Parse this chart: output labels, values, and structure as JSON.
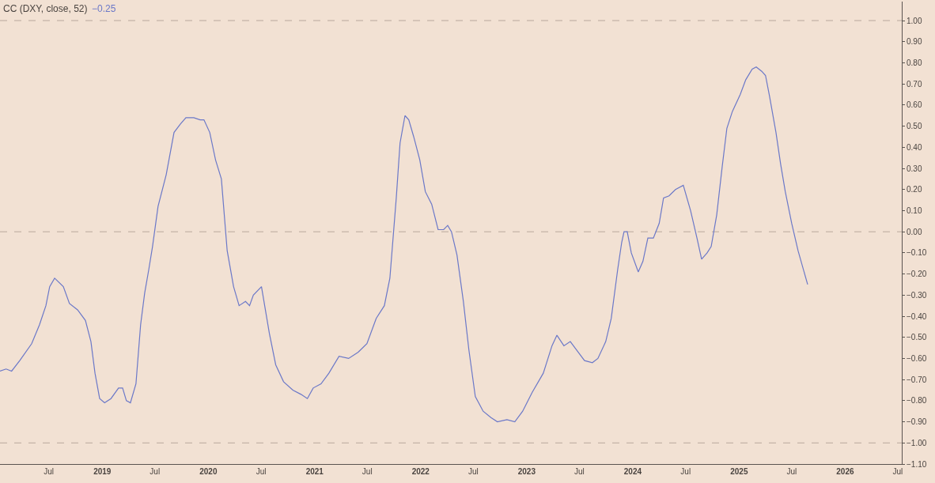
{
  "chart_data": {
    "type": "line",
    "title": "CC (DXY, close, 52)",
    "annotations": [
      "−0.25"
    ],
    "x": [
      "2018-01-14",
      "2018-02-04",
      "2018-02-23",
      "2018-03-23",
      "2018-05-03",
      "2018-05-30",
      "2018-06-21",
      "2018-07-04",
      "2018-07-21",
      "2018-08-20",
      "2018-09-10",
      "2018-10-08",
      "2018-11-04",
      "2018-11-23",
      "2018-12-07",
      "2018-12-23",
      "2019-01-09",
      "2019-01-31",
      "2019-02-26",
      "2019-03-12",
      "2019-03-25",
      "2019-04-08",
      "2019-04-27",
      "2019-05-13",
      "2019-05-27",
      "2019-06-10",
      "2019-06-23",
      "2019-07-12",
      "2019-08-09",
      "2019-09-05",
      "2019-09-27",
      "2019-10-16",
      "2019-11-12",
      "2019-12-04",
      "2019-12-17",
      "2020-01-06",
      "2020-01-26",
      "2020-02-15",
      "2020-03-06",
      "2020-03-28",
      "2020-04-16",
      "2020-05-08",
      "2020-05-22",
      "2020-06-04",
      "2020-07-02",
      "2020-07-29",
      "2020-08-20",
      "2020-09-16",
      "2020-10-18",
      "2020-11-15",
      "2020-12-07",
      "2020-12-27",
      "2021-01-23",
      "2021-02-19",
      "2021-03-26",
      "2021-04-28",
      "2021-05-31",
      "2021-06-30",
      "2021-08-01",
      "2021-08-29",
      "2021-09-17",
      "2021-10-09",
      "2021-10-22",
      "2021-11-08",
      "2021-11-21",
      "2021-12-08",
      "2021-12-29",
      "2022-01-17",
      "2022-02-08",
      "2022-03-02",
      "2022-03-21",
      "2022-04-04",
      "2022-04-17",
      "2022-05-06",
      "2022-05-28",
      "2022-06-16",
      "2022-07-08",
      "2022-08-04",
      "2022-08-31",
      "2022-09-22",
      "2022-10-25",
      "2022-11-21",
      "2022-12-18",
      "2023-01-20",
      "2023-02-27",
      "2023-03-29",
      "2023-04-15",
      "2023-05-09",
      "2023-05-31",
      "2023-06-27",
      "2023-07-19",
      "2023-08-15",
      "2023-09-03",
      "2023-09-30",
      "2023-10-19",
      "2023-11-10",
      "2023-11-24",
      "2023-12-02",
      "2023-12-13",
      "2023-12-27",
      "2024-01-20",
      "2024-02-05",
      "2024-02-22",
      "2024-03-12",
      "2024-04-01",
      "2024-04-16",
      "2024-05-05",
      "2024-05-27",
      "2024-06-23",
      "2024-07-18",
      "2024-08-09",
      "2024-08-25",
      "2024-09-13",
      "2024-09-27",
      "2024-10-16",
      "2024-11-04",
      "2024-11-20",
      "2024-12-09",
      "2025-01-05",
      "2025-01-24",
      "2025-02-15",
      "2025-03-01",
      "2025-03-20",
      "2025-04-02",
      "2025-04-16",
      "2025-05-08",
      "2025-05-24",
      "2025-06-09",
      "2025-07-01",
      "2025-07-23",
      "2025-08-25"
    ],
    "series": [
      {
        "color": "#6b78c8",
        "values": [
          -0.66,
          -0.65,
          -0.66,
          -0.61,
          -0.53,
          -0.44,
          -0.35,
          -0.26,
          -0.22,
          -0.26,
          -0.34,
          -0.37,
          -0.42,
          -0.52,
          -0.67,
          -0.79,
          -0.81,
          -0.79,
          -0.74,
          -0.74,
          -0.8,
          -0.81,
          -0.72,
          -0.44,
          -0.29,
          -0.18,
          -0.07,
          0.12,
          0.27,
          0.47,
          0.51,
          0.54,
          0.54,
          0.53,
          0.53,
          0.47,
          0.34,
          0.25,
          -0.09,
          -0.26,
          -0.35,
          -0.33,
          -0.35,
          -0.3,
          -0.26,
          -0.48,
          -0.63,
          -0.71,
          -0.75,
          -0.77,
          -0.79,
          -0.74,
          -0.72,
          -0.67,
          -0.59,
          -0.6,
          -0.57,
          -0.53,
          -0.41,
          -0.35,
          -0.22,
          0.16,
          0.42,
          0.55,
          0.53,
          0.45,
          0.34,
          0.19,
          0.13,
          0.01,
          0.01,
          0.03,
          0.0,
          -0.11,
          -0.33,
          -0.56,
          -0.78,
          -0.85,
          -0.88,
          -0.9,
          -0.89,
          -0.9,
          -0.85,
          -0.76,
          -0.67,
          -0.54,
          -0.49,
          -0.54,
          -0.52,
          -0.57,
          -0.61,
          -0.62,
          -0.6,
          -0.52,
          -0.41,
          -0.18,
          -0.05,
          0.0,
          0.0,
          -0.1,
          -0.19,
          -0.14,
          -0.03,
          -0.03,
          0.04,
          0.16,
          0.17,
          0.2,
          0.22,
          0.1,
          -0.03,
          -0.13,
          -0.1,
          -0.07,
          0.08,
          0.31,
          0.49,
          0.57,
          0.65,
          0.72,
          0.77,
          0.78,
          0.76,
          0.74,
          0.64,
          0.47,
          0.32,
          0.19,
          0.04,
          -0.09,
          -0.25
        ]
      }
    ],
    "xlim": [
      "2018-01-14",
      "2026-07-15"
    ],
    "xticks": [
      {
        "value": "2018-07-01",
        "label": "Jul"
      },
      {
        "value": "2019-01-01",
        "label": "2019"
      },
      {
        "value": "2019-07-01",
        "label": "Jul"
      },
      {
        "value": "2020-01-01",
        "label": "2020"
      },
      {
        "value": "2020-07-01",
        "label": "Jul"
      },
      {
        "value": "2021-01-01",
        "label": "2021"
      },
      {
        "value": "2021-07-01",
        "label": "Jul"
      },
      {
        "value": "2022-01-01",
        "label": "2022"
      },
      {
        "value": "2022-07-01",
        "label": "Jul"
      },
      {
        "value": "2023-01-01",
        "label": "2023"
      },
      {
        "value": "2023-07-01",
        "label": "Jul"
      },
      {
        "value": "2024-01-01",
        "label": "2024"
      },
      {
        "value": "2024-07-01",
        "label": "Jul"
      },
      {
        "value": "2025-01-01",
        "label": "2025"
      },
      {
        "value": "2025-07-01",
        "label": "Jul"
      },
      {
        "value": "2026-01-01",
        "label": "2026"
      },
      {
        "value": "2026-07-01",
        "label": "Jul"
      }
    ],
    "ylim": [
      -1.1,
      1.09
    ],
    "yticks": [
      {
        "value": -1.1,
        "label": "−1.10"
      },
      {
        "value": -1.0,
        "label": "−1.00"
      },
      {
        "value": -0.9,
        "label": "−0.90"
      },
      {
        "value": -0.8,
        "label": "−0.80"
      },
      {
        "value": -0.7,
        "label": "−0.70"
      },
      {
        "value": -0.6,
        "label": "−0.60"
      },
      {
        "value": -0.5,
        "label": "−0.50"
      },
      {
        "value": -0.4,
        "label": "−0.40"
      },
      {
        "value": -0.3,
        "label": "−0.30"
      },
      {
        "value": -0.2,
        "label": "−0.20"
      },
      {
        "value": -0.1,
        "label": "−0.10"
      },
      {
        "value": 0,
        "label": "0.00"
      },
      {
        "value": 0.1,
        "label": "0.10"
      },
      {
        "value": 0.2,
        "label": "0.20"
      },
      {
        "value": 0.3,
        "label": "0.30"
      },
      {
        "value": 0.4,
        "label": "0.40"
      },
      {
        "value": 0.5,
        "label": "0.50"
      },
      {
        "value": 0.6,
        "label": "0.60"
      },
      {
        "value": 0.7,
        "label": "0.70"
      },
      {
        "value": 0.8,
        "label": "0.80"
      },
      {
        "value": 0.9,
        "label": "0.90"
      },
      {
        "value": 1.0,
        "label": "1.00"
      }
    ],
    "ref_lines": [
      {
        "axis": "y",
        "value": 1.0,
        "color": "#b8a89c",
        "line_style": "dashed"
      },
      {
        "axis": "y",
        "value": 0,
        "color": "#b8a89c",
        "line_style": "dashed"
      },
      {
        "axis": "y",
        "value": -1.0,
        "color": "#b8a89c",
        "line_style": "dashed"
      }
    ],
    "grid": false,
    "marker": "none",
    "line_style": "solid"
  }
}
